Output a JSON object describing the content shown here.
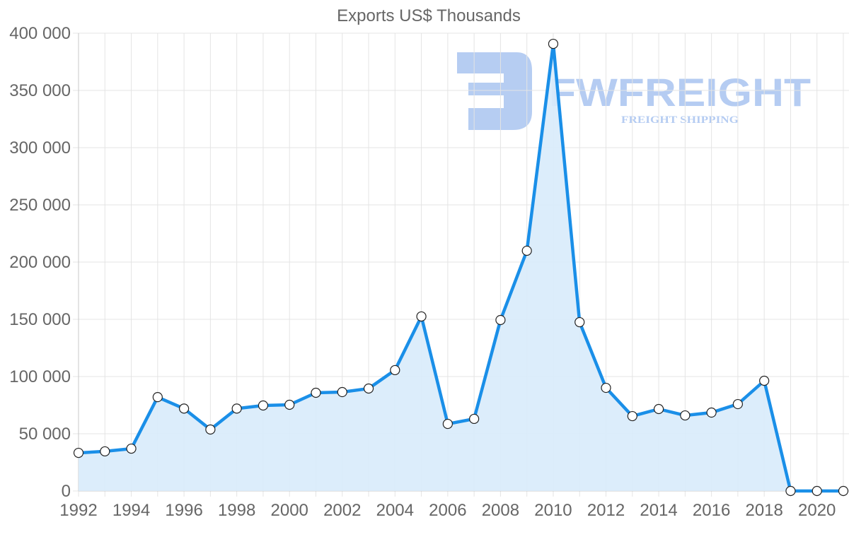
{
  "chart_data": {
    "type": "area",
    "title": "Exports US$ Thousands",
    "xlabel": "",
    "ylabel": "",
    "x": [
      1992,
      1993,
      1994,
      1995,
      1996,
      1997,
      1998,
      1999,
      2000,
      2001,
      2002,
      2003,
      2004,
      2005,
      2006,
      2007,
      2008,
      2009,
      2010,
      2011,
      2012,
      2013,
      2014,
      2015,
      2016,
      2017,
      2018,
      2019,
      2020,
      2021
    ],
    "series": [
      {
        "name": "Exports US$ Thousands",
        "values": [
          33300,
          34600,
          37000,
          82000,
          72000,
          53700,
          72000,
          74700,
          75300,
          85800,
          86400,
          89500,
          105600,
          152500,
          58600,
          63000,
          149400,
          209900,
          390700,
          147500,
          90100,
          65400,
          71600,
          66000,
          68500,
          75900,
          96300,
          0,
          0,
          0
        ],
        "color": "#1a8fe8",
        "fill": "#d8ebfb"
      }
    ],
    "ylim": [
      0,
      400000
    ],
    "yticks": [
      0,
      50000,
      100000,
      150000,
      200000,
      250000,
      300000,
      350000,
      400000
    ],
    "ytick_labels": [
      "0",
      "50 000",
      "100 000",
      "150 000",
      "200 000",
      "250 000",
      "300 000",
      "350 000",
      "400 000"
    ],
    "xticks": [
      1992,
      1994,
      1996,
      1998,
      2000,
      2002,
      2004,
      2006,
      2008,
      2010,
      2012,
      2014,
      2016,
      2018,
      2020
    ],
    "xtick_labels": [
      "1992",
      "1994",
      "1996",
      "1998",
      "2000",
      "2002",
      "2004",
      "2006",
      "2008",
      "2010",
      "2012",
      "2014",
      "2016",
      "2018",
      "2020"
    ],
    "grid": true,
    "legend": "none"
  },
  "watermark": {
    "brand": "FWFREIGHT",
    "tagline": "FREIGHT SHIPPING",
    "color": "#a9c4f0"
  }
}
